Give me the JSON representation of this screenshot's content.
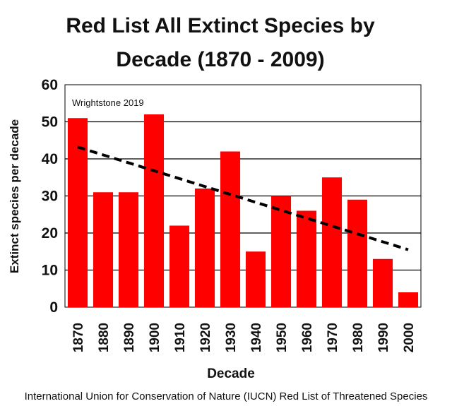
{
  "chart_data": {
    "type": "bar",
    "title_lines": [
      "Red List All Extinct Species by",
      "Decade (1870 - 2009)"
    ],
    "xlabel": "Decade",
    "ylabel": "Extinct species per decade",
    "categories": [
      "1870",
      "1880",
      "1890",
      "1900",
      "1910",
      "1920",
      "1930",
      "1940",
      "1950",
      "1960",
      "1970",
      "1980",
      "1990",
      "2000"
    ],
    "values": [
      51,
      31,
      31,
      52,
      22,
      32,
      42,
      15,
      30,
      26,
      35,
      29,
      13,
      4
    ],
    "ylim": [
      0,
      60
    ],
    "yticks": [
      "0",
      "10",
      "20",
      "30",
      "40",
      "50",
      "60"
    ],
    "grid": true,
    "trendline": {
      "style": "dashed",
      "start": 43.2,
      "end": 15.5
    },
    "annotation": "Wrightstone 2019",
    "bar_color": "#ff0000",
    "trend_color": "#000000"
  },
  "footer": "International Union for Conservation of Nature (IUCN) Red List of Threatened Species"
}
